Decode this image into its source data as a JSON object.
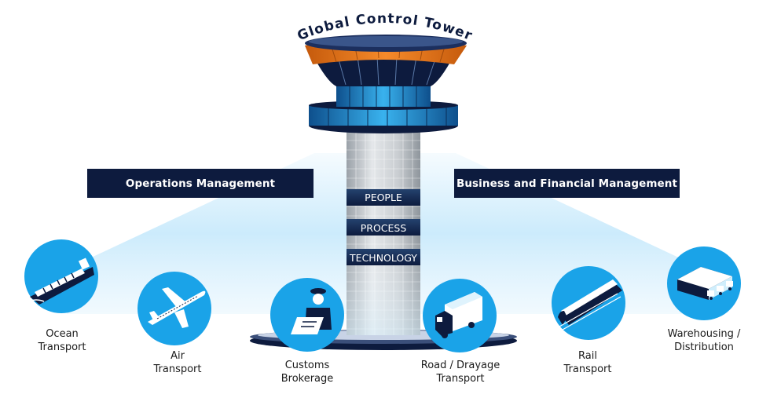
{
  "title": "Global Control Tower",
  "banners": {
    "left": "Operations Management",
    "right": "Business and Financial Management"
  },
  "tower_bands": [
    "PEOPLE",
    "PROCESS",
    "TECHNOLOGY"
  ],
  "services": [
    {
      "icon": "ship-icon",
      "line1": "Ocean",
      "line2": "Transport"
    },
    {
      "icon": "airplane-icon",
      "line1": "Air",
      "line2": "Transport"
    },
    {
      "icon": "customs-officer-icon",
      "line1": "Customs",
      "line2": "Brokerage"
    },
    {
      "icon": "truck-icon",
      "line1": "Road / Drayage",
      "line2": "Transport"
    },
    {
      "icon": "train-icon",
      "line1": "Rail",
      "line2": "Transport"
    },
    {
      "icon": "warehouse-icon",
      "line1": "Warehousing /",
      "line2": "Distribution"
    }
  ],
  "colors": {
    "navy": "#0d1b3e",
    "accent_orange": "#f07a1a",
    "icon_blue": "#1aa3e8",
    "glow_blue": "#bfe6fb"
  }
}
